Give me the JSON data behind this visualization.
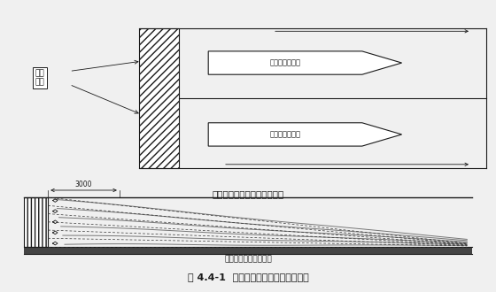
{
  "title": "图 4.4-1  混凝土浇筑顺序及分层示意图",
  "top_label": "西端头负二层侧墙砼浇筑方向",
  "top_sub_label1": "混凝土浇筑方向",
  "top_sub_label2": "混凝土浇筑方向",
  "left_label": "已浇\n筑砼",
  "bottom_label": "混凝土分层浇筑示意图",
  "dim_label": "3000",
  "bg_color": "#f0f0f0",
  "line_color": "#1a1a1a",
  "box_bg": "#ffffff"
}
